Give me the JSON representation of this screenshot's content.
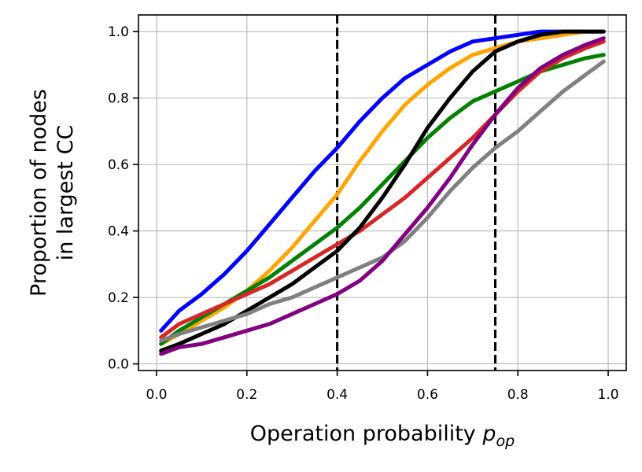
{
  "chart_data": {
    "type": "line",
    "xlabel_prefix": "Operation probability ",
    "xlabel_symbol": "p",
    "xlabel_subscript": "op",
    "ylabel_lines": [
      "Proportion of nodes",
      "in largest CC"
    ],
    "xlim": [
      -0.04,
      1.04
    ],
    "ylim": [
      -0.02,
      1.05
    ],
    "xticks": [
      0.0,
      0.2,
      0.4,
      0.6,
      0.8,
      1.0
    ],
    "xtick_labels": [
      "0.0",
      "0.2",
      "0.4",
      "0.6",
      "0.8",
      "1.0"
    ],
    "yticks": [
      0.0,
      0.2,
      0.4,
      0.6,
      0.8,
      1.0
    ],
    "ytick_labels": [
      "0.0",
      "0.2",
      "0.4",
      "0.6",
      "0.8",
      "1.0"
    ],
    "grid": true,
    "vlines": [
      0.4,
      0.75
    ],
    "x": [
      0.01,
      0.05,
      0.1,
      0.15,
      0.2,
      0.25,
      0.3,
      0.35,
      0.4,
      0.45,
      0.5,
      0.55,
      0.6,
      0.65,
      0.7,
      0.75,
      0.8,
      0.85,
      0.9,
      0.95,
      0.99
    ],
    "series": [
      {
        "color": "#0000ff",
        "values": [
          0.1,
          0.16,
          0.21,
          0.27,
          0.34,
          0.42,
          0.5,
          0.58,
          0.65,
          0.73,
          0.8,
          0.86,
          0.9,
          0.94,
          0.97,
          0.98,
          0.99,
          1.0,
          1.0,
          1.0,
          1.0
        ]
      },
      {
        "color": "#ffa500",
        "values": [
          0.06,
          0.09,
          0.13,
          0.17,
          0.22,
          0.28,
          0.35,
          0.43,
          0.51,
          0.61,
          0.7,
          0.78,
          0.84,
          0.89,
          0.93,
          0.95,
          0.97,
          0.98,
          0.99,
          1.0,
          1.0
        ]
      },
      {
        "color": "#008000",
        "values": [
          0.06,
          0.1,
          0.14,
          0.18,
          0.22,
          0.26,
          0.31,
          0.36,
          0.41,
          0.47,
          0.54,
          0.61,
          0.68,
          0.74,
          0.79,
          0.82,
          0.85,
          0.88,
          0.9,
          0.92,
          0.93
        ]
      },
      {
        "color": "#d62728",
        "values": [
          0.08,
          0.12,
          0.15,
          0.18,
          0.21,
          0.24,
          0.28,
          0.32,
          0.36,
          0.4,
          0.45,
          0.5,
          0.56,
          0.62,
          0.68,
          0.75,
          0.82,
          0.88,
          0.92,
          0.95,
          0.97
        ]
      },
      {
        "color": "#000000",
        "values": [
          0.04,
          0.06,
          0.09,
          0.12,
          0.16,
          0.2,
          0.24,
          0.29,
          0.34,
          0.41,
          0.5,
          0.6,
          0.71,
          0.8,
          0.88,
          0.94,
          0.97,
          0.99,
          1.0,
          1.0,
          1.0
        ]
      },
      {
        "color": "#808080",
        "values": [
          0.07,
          0.09,
          0.11,
          0.13,
          0.15,
          0.18,
          0.2,
          0.23,
          0.26,
          0.29,
          0.32,
          0.37,
          0.44,
          0.52,
          0.59,
          0.65,
          0.7,
          0.76,
          0.82,
          0.87,
          0.91
        ]
      },
      {
        "color": "#800080",
        "values": [
          0.03,
          0.05,
          0.06,
          0.08,
          0.1,
          0.12,
          0.15,
          0.18,
          0.21,
          0.25,
          0.31,
          0.39,
          0.47,
          0.56,
          0.66,
          0.75,
          0.83,
          0.89,
          0.93,
          0.96,
          0.98
        ]
      }
    ]
  }
}
